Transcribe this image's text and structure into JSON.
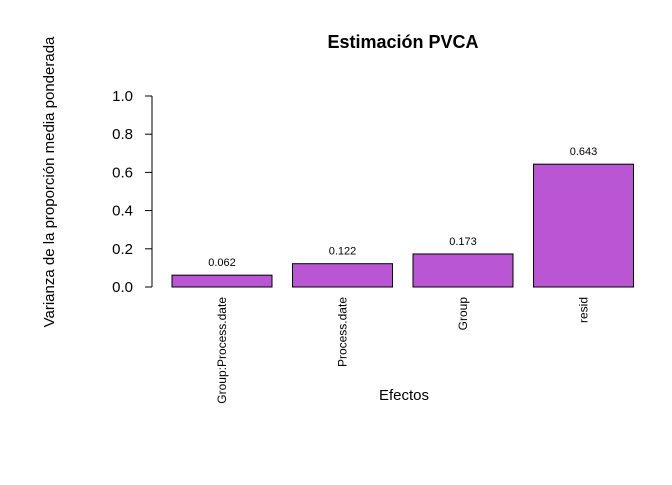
{
  "chart_data": {
    "type": "bar",
    "title": "Estimación PVCA",
    "xlabel": "Efectos",
    "ylabel": "Varianza de la proporción media ponderada",
    "categories": [
      "Group:Process.date",
      "Process.date",
      "Group",
      "resid"
    ],
    "values": [
      0.062,
      0.122,
      0.173,
      0.643
    ],
    "value_labels": [
      "0.062",
      "0.122",
      "0.173",
      "0.643"
    ],
    "ylim": [
      0,
      1
    ],
    "yticks": [
      0.0,
      0.2,
      0.4,
      0.6,
      0.8,
      1.0
    ],
    "ytick_labels": [
      "0.0",
      "0.2",
      "0.4",
      "0.6",
      "0.8",
      "1.0"
    ],
    "bar_color": "#ba55d3",
    "bar_border_color": "#000000",
    "grid": false,
    "legend": "none"
  }
}
